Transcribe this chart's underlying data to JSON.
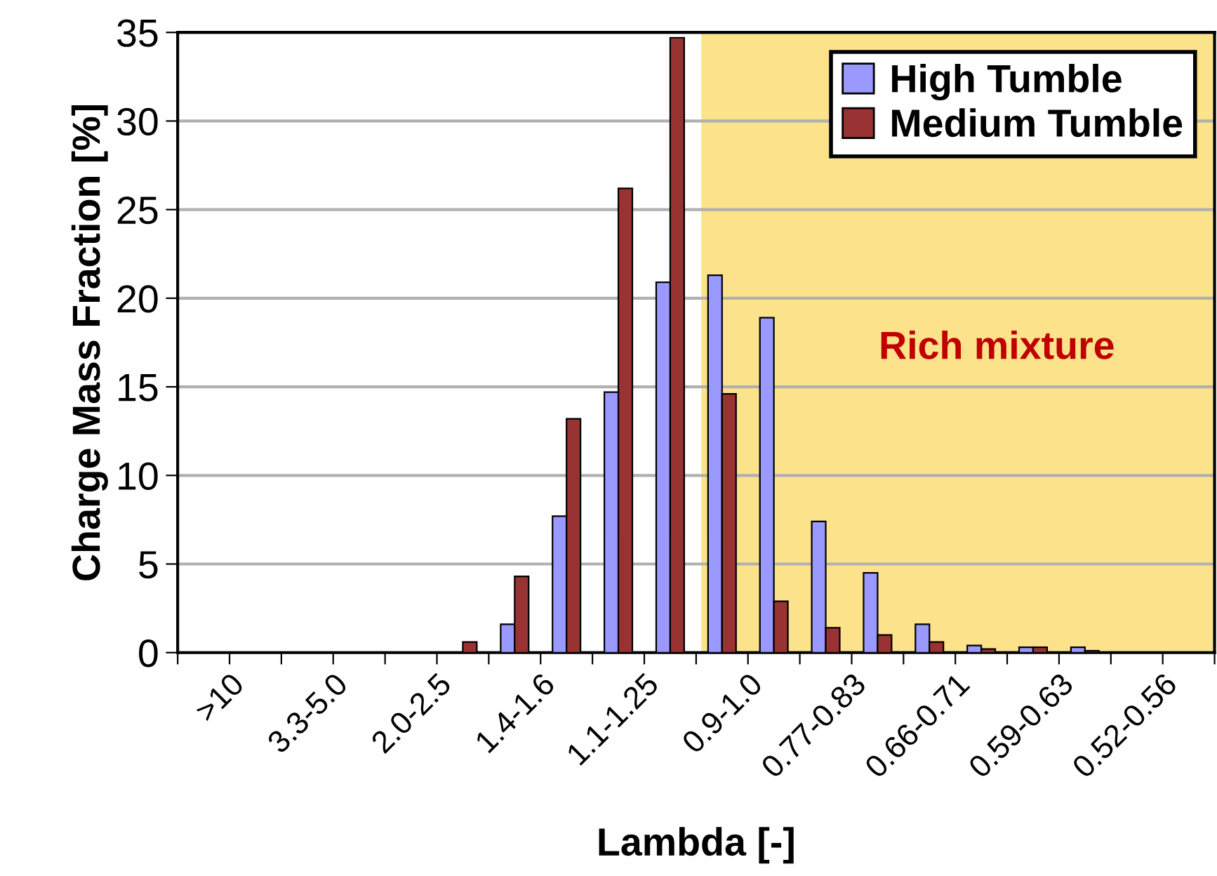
{
  "chart_data": {
    "type": "bar",
    "xlabel": "Lambda [-]",
    "ylabel": "Charge Mass Fraction [%]",
    "categories": [
      ">10",
      null,
      "3.3-5.0",
      null,
      "2.0-2.5",
      null,
      "1.4-1.6",
      null,
      "1.1-1.25",
      null,
      "0.9-1.0",
      null,
      "0.77-0.83",
      null,
      "0.66-0.71",
      null,
      "0.59-0.63",
      null,
      "0.52-0.56",
      null
    ],
    "series": [
      {
        "name": "High Tumble",
        "color": "#9999ff",
        "values": [
          null,
          null,
          null,
          null,
          null,
          null,
          1.6,
          7.7,
          14.7,
          20.9,
          21.3,
          18.9,
          7.4,
          4.5,
          1.6,
          0.4,
          0.3,
          0.3,
          null,
          null
        ]
      },
      {
        "name": "Medium Tumble",
        "color": "#993333",
        "values": [
          null,
          null,
          null,
          null,
          null,
          0.6,
          4.3,
          13.2,
          26.2,
          34.7,
          14.6,
          2.9,
          1.4,
          1.0,
          0.6,
          0.2,
          0.3,
          0.1,
          null,
          null
        ]
      }
    ],
    "annotations": [
      "Rich mixture"
    ],
    "ylim": [
      0,
      35
    ],
    "yticks": [
      0,
      5,
      10,
      15,
      20,
      25,
      30,
      35
    ],
    "grid": "y",
    "legend": "top right"
  }
}
